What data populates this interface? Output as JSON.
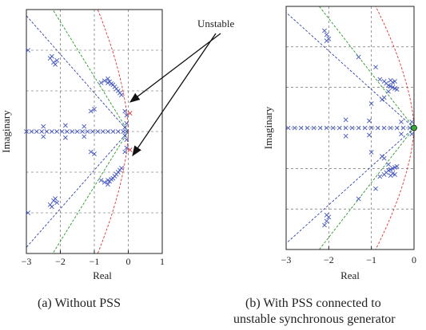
{
  "annotation": "Unstable",
  "colors": {
    "marker": "#4455bb",
    "grid": "#555555",
    "blue_line": "#3344aa",
    "green_line": "#229922",
    "red_line": "#dd3333",
    "arrow": "#111111"
  },
  "chart_data": [
    {
      "type": "scatter",
      "caption": "(a) Without PSS",
      "xlabel": "Real",
      "ylabel": "Imaginary",
      "xlim": [
        -3,
        1
      ],
      "ylim": [
        -6,
        6
      ],
      "xticks": [
        -3,
        -2,
        -1,
        0,
        1
      ],
      "grid": true,
      "points": [
        [
          -2.3,
          3.6
        ],
        [
          -2.2,
          3.4
        ],
        [
          -2.15,
          3.3
        ],
        [
          -2.1,
          3.5
        ],
        [
          -2.25,
          3.7
        ],
        [
          -2.3,
          -3.6
        ],
        [
          -2.2,
          -3.4
        ],
        [
          -2.15,
          -3.3
        ],
        [
          -2.1,
          -3.5
        ],
        [
          -2.25,
          -3.7
        ],
        [
          -2.95,
          4.0
        ],
        [
          -2.95,
          -4.0
        ],
        [
          -0.7,
          2.5
        ],
        [
          -0.6,
          2.4
        ],
        [
          -0.5,
          2.35
        ],
        [
          -0.45,
          2.3
        ],
        [
          -0.4,
          2.2
        ],
        [
          -0.35,
          2.1
        ],
        [
          -0.3,
          2.0
        ],
        [
          -0.25,
          1.9
        ],
        [
          -0.2,
          1.8
        ],
        [
          -0.6,
          2.6
        ],
        [
          -0.55,
          2.45
        ],
        [
          -0.8,
          2.4
        ],
        [
          -0.7,
          -2.5
        ],
        [
          -0.6,
          -2.4
        ],
        [
          -0.5,
          -2.35
        ],
        [
          -0.45,
          -2.3
        ],
        [
          -0.4,
          -2.2
        ],
        [
          -0.35,
          -2.1
        ],
        [
          -0.3,
          -2.0
        ],
        [
          -0.25,
          -1.9
        ],
        [
          -0.2,
          -1.8
        ],
        [
          -0.6,
          -2.6
        ],
        [
          -0.55,
          -2.45
        ],
        [
          -0.8,
          -2.4
        ],
        [
          -0.1,
          1.0
        ],
        [
          -0.05,
          0.8
        ],
        [
          -0.1,
          -1.0
        ],
        [
          -0.05,
          -0.8
        ],
        [
          -1.0,
          1.1
        ],
        [
          -1.1,
          1.0
        ],
        [
          -1.0,
          -1.1
        ],
        [
          -1.1,
          -1.0
        ],
        [
          -0.05,
          0.4
        ],
        [
          -0.05,
          -0.4
        ],
        [
          -0.1,
          0.2
        ],
        [
          -0.1,
          -0.2
        ],
        [
          -1.85,
          0.3
        ],
        [
          -1.85,
          -0.3
        ],
        [
          -1.3,
          0.25
        ],
        [
          -1.3,
          -0.25
        ],
        [
          -2.5,
          0.25
        ],
        [
          -2.5,
          -0.25
        ],
        [
          -3.0,
          0
        ],
        [
          -2.85,
          0
        ],
        [
          -2.7,
          0
        ],
        [
          -2.55,
          0
        ],
        [
          -2.4,
          0
        ],
        [
          -2.25,
          0
        ],
        [
          -2.1,
          0
        ],
        [
          -1.95,
          0
        ],
        [
          -1.8,
          0
        ],
        [
          -1.65,
          0
        ],
        [
          -1.5,
          0
        ],
        [
          -1.35,
          0
        ],
        [
          -1.2,
          0
        ],
        [
          -1.05,
          0
        ],
        [
          -0.9,
          0
        ],
        [
          -0.75,
          0
        ],
        [
          -0.6,
          0
        ],
        [
          -0.45,
          0
        ],
        [
          -0.3,
          0
        ],
        [
          -0.15,
          0
        ],
        [
          -0.05,
          0
        ]
      ],
      "unstable_points": [
        [
          0.05,
          0.9
        ],
        [
          0.05,
          -0.9
        ]
      ],
      "rays": [
        {
          "color": "blue",
          "slope": 1.9
        },
        {
          "color": "green",
          "slope": 2.7
        },
        {
          "color": "red",
          "curve": "hyperbola"
        }
      ]
    },
    {
      "type": "scatter",
      "caption_line1": "(b) With PSS connected to",
      "caption_line2": "unstable synchronous generator",
      "xlabel": "Real",
      "ylabel": "Imaginary",
      "xlim": [
        -3,
        0
      ],
      "ylim": [
        -6,
        6
      ],
      "xticks": [
        -3,
        -2,
        -1,
        0
      ],
      "grid": true,
      "points": [
        [
          -2.1,
          4.8
        ],
        [
          -2.05,
          4.6
        ],
        [
          -2.0,
          4.4
        ],
        [
          -2.05,
          4.3
        ],
        [
          -1.3,
          3.5
        ],
        [
          -0.9,
          3.0
        ],
        [
          -0.8,
          2.4
        ],
        [
          -0.7,
          2.3
        ],
        [
          -0.65,
          2.2
        ],
        [
          -0.6,
          2.1
        ],
        [
          -0.55,
          2.05
        ],
        [
          -0.5,
          2.0
        ],
        [
          -0.45,
          1.95
        ],
        [
          -0.4,
          1.9
        ],
        [
          -0.55,
          2.35
        ],
        [
          -0.5,
          2.25
        ],
        [
          -0.45,
          2.3
        ],
        [
          -0.6,
          1.8
        ],
        [
          -0.7,
          1.5
        ],
        [
          -0.75,
          1.4
        ],
        [
          -2.1,
          -4.8
        ],
        [
          -2.05,
          -4.6
        ],
        [
          -2.0,
          -4.4
        ],
        [
          -2.05,
          -4.3
        ],
        [
          -1.3,
          -3.5
        ],
        [
          -0.9,
          -3.0
        ],
        [
          -0.8,
          -2.4
        ],
        [
          -0.7,
          -2.3
        ],
        [
          -0.65,
          -2.2
        ],
        [
          -0.6,
          -2.1
        ],
        [
          -0.55,
          -2.05
        ],
        [
          -0.5,
          -2.0
        ],
        [
          -0.45,
          -1.95
        ],
        [
          -0.4,
          -1.9
        ],
        [
          -0.55,
          -2.35
        ],
        [
          -0.5,
          -2.25
        ],
        [
          -0.45,
          -2.3
        ],
        [
          -0.6,
          -1.8
        ],
        [
          -0.7,
          -1.5
        ],
        [
          -0.75,
          -1.4
        ],
        [
          -1.0,
          1.2
        ],
        [
          -1.0,
          -1.2
        ],
        [
          -0.05,
          0.3
        ],
        [
          -0.05,
          -0.3
        ],
        [
          -1.6,
          0.4
        ],
        [
          -1.6,
          -0.4
        ],
        [
          -1.05,
          0.35
        ],
        [
          -1.05,
          -0.35
        ],
        [
          -0.3,
          0.3
        ],
        [
          -0.3,
          -0.3
        ],
        [
          -2.95,
          0
        ],
        [
          -2.8,
          0
        ],
        [
          -2.65,
          0
        ],
        [
          -2.5,
          0
        ],
        [
          -2.35,
          0
        ],
        [
          -2.2,
          0
        ],
        [
          -2.05,
          0
        ],
        [
          -1.9,
          0
        ],
        [
          -1.75,
          0
        ],
        [
          -1.6,
          0
        ],
        [
          -1.45,
          0
        ],
        [
          -1.3,
          0
        ],
        [
          -1.15,
          0
        ],
        [
          -1.0,
          0
        ],
        [
          -0.85,
          0
        ],
        [
          -0.7,
          0
        ],
        [
          -0.55,
          0
        ],
        [
          -0.4,
          0
        ],
        [
          -0.25,
          0
        ],
        [
          -0.1,
          0
        ],
        [
          -0.02,
          0
        ]
      ],
      "unstable_points": [],
      "rays": [
        {
          "color": "blue",
          "slope": 1.9
        },
        {
          "color": "green",
          "slope": 2.7
        },
        {
          "color": "red",
          "curve": "hyperbola"
        }
      ]
    }
  ]
}
